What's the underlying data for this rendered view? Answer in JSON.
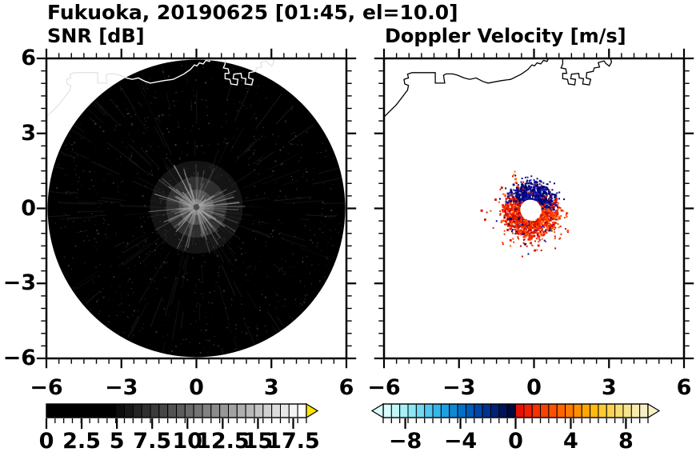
{
  "title": "Fukuoka, 20190625 [01:45, el=10.0]",
  "panels": {
    "snr": {
      "label": "SNR [dB]"
    },
    "vel": {
      "label": "Doppler Velocity [m/s]"
    }
  },
  "axis": {
    "x_labels": [
      "−6",
      "−3",
      "0",
      "3",
      "6"
    ],
    "y_labels": [
      "6",
      "3",
      "0",
      "−3",
      "−6"
    ],
    "x_values": [
      -6,
      -3,
      0,
      3,
      6
    ],
    "y_values": [
      6,
      3,
      0,
      -3,
      -6
    ],
    "range": [
      -6,
      6
    ],
    "minor_step": 0.5
  },
  "chart_data": [
    {
      "type": "heatmap",
      "panel": "snr",
      "title": "SNR [dB]",
      "x_range": [
        -6,
        6
      ],
      "y_range": [
        -6,
        6
      ],
      "x_ticks": [
        -6,
        -3,
        0,
        3,
        6
      ],
      "y_ticks": [
        6,
        3,
        0,
        -3,
        -6
      ],
      "minor_tick_step": 0.5,
      "colorbar": {
        "labels": [
          "0",
          "2.5",
          "5",
          "7.5",
          "10",
          "12.5",
          "15",
          "17.5"
        ],
        "label_values": [
          0,
          2.5,
          5,
          7.5,
          10,
          12.5,
          15,
          17.5
        ],
        "vmin": 0,
        "vmax": 18.5,
        "overflow_arrow_color": "#ffe400",
        "segment_colors": [
          "#000000",
          "#000000",
          "#000000",
          "#000000",
          "#000000",
          "#000000",
          "#000000",
          "#000000",
          "#0d0d0d",
          "#181818",
          "#242424",
          "#2f2f2f",
          "#3b3b3b",
          "#464646",
          "#525252",
          "#5d5d5d",
          "#696969",
          "#747474",
          "#808080",
          "#8b8b8b",
          "#979797",
          "#a2a2a2",
          "#aeaeae",
          "#b9b9b9",
          "#c5c5c5",
          "#d0d0d0",
          "#dcdcdc",
          "#e7e7e7",
          "#f3f3f3",
          "#ffffff"
        ]
      },
      "scan": {
        "disk_radius": 5.95,
        "disk_color": "#000000",
        "starburst_center": [
          0.0,
          0.05
        ],
        "starburst_radius": 1.9,
        "description": "dark PPI scan disk with speckle noise and bright radial ground-clutter starburst at radar site; coastline overlaid in white"
      }
    },
    {
      "type": "heatmap",
      "panel": "vel",
      "title": "Doppler Velocity [m/s]",
      "x_range": [
        -6,
        6
      ],
      "y_range": [
        -6,
        6
      ],
      "x_ticks": [
        -6,
        -3,
        0,
        3,
        6
      ],
      "y_ticks": [
        6,
        3,
        0,
        -3,
        -6
      ],
      "minor_tick_step": 0.5,
      "colorbar": {
        "labels": [
          "−8",
          "−4",
          "0",
          "4",
          "8"
        ],
        "label_values": [
          -8,
          -4,
          0,
          4,
          8
        ],
        "vmin": -9.6,
        "vmax": 9.6,
        "segment_colors": [
          "#dafcfc",
          "#c2f7fa",
          "#a8f0f8",
          "#8ce6f6",
          "#6fd9f3",
          "#52c8ef",
          "#36b5ea",
          "#1da0e2",
          "#0b88d6",
          "#0070c8",
          "#005ab8",
          "#0046a6",
          "#003390",
          "#002276",
          "#001458",
          "#040838",
          "#e81000",
          "#f12000",
          "#f63000",
          "#fa4000",
          "#fe5000",
          "#ff6400",
          "#ff7a00",
          "#ff9000",
          "#ffa600",
          "#ffba10",
          "#ffc930",
          "#fbd350",
          "#f8dd70",
          "#f7e58e",
          "#f6ebac",
          "#f6f0c4"
        ]
      },
      "velocity_ring": {
        "center": [
          -0.15,
          -0.05
        ],
        "hole_radius": 0.4,
        "inner_radius": 0.44,
        "dense_radius": 1.08,
        "fuzz_radius": 1.8,
        "away_sector_deg": [
          15,
          150
        ],
        "blue_shades": [
          "#00006e",
          "#000080",
          "#0d0d9a",
          "#1a1aae",
          "#000a5a"
        ],
        "red_shades": [
          "#e01000",
          "#ee2000",
          "#f63000",
          "#ff4500",
          "#d00d00",
          "#ff5a00"
        ],
        "outlier_points": [
          {
            "x": -0.7,
            "y": 0.95,
            "c": "#ff6a00",
            "s": 3
          },
          {
            "x": -0.74,
            "y": 1.08,
            "c": "#ff5800",
            "s": 2
          },
          {
            "x": -0.78,
            "y": 1.22,
            "c": "#ff6a00",
            "s": 3
          },
          {
            "x": -0.84,
            "y": 1.38,
            "c": "#ff7a00",
            "s": 2
          },
          {
            "x": -0.8,
            "y": 1.5,
            "c": "#ff6a00",
            "s": 2
          },
          {
            "x": -0.88,
            "y": 1.32,
            "c": "#e81000",
            "s": 2
          },
          {
            "x": -2.14,
            "y": -0.04,
            "c": "#e81000",
            "s": 3
          },
          {
            "x": -1.76,
            "y": -0.07,
            "c": "#ff4500",
            "s": 2
          },
          {
            "x": -1.22,
            "y": -0.33,
            "c": "#000080",
            "s": 2
          },
          {
            "x": 0.83,
            "y": 0.34,
            "c": "#e81000",
            "s": 3
          },
          {
            "x": 1.02,
            "y": 0.05,
            "c": "#e81000",
            "s": 2
          },
          {
            "x": -0.1,
            "y": -1.45,
            "c": "#e81000",
            "s": 2
          },
          {
            "x": 0.15,
            "y": -1.3,
            "c": "#ff4500",
            "s": 2
          },
          {
            "x": -0.45,
            "y": -1.35,
            "c": "#f52c00",
            "s": 2
          },
          {
            "x": 0.35,
            "y": 1.05,
            "c": "#000a6e",
            "s": 2
          },
          {
            "x": 0.1,
            "y": 1.22,
            "c": "#000a6e",
            "s": 2
          }
        ],
        "description": "Doppler velocity couplet ring around radar: negative (navy, away) on upper sector, positive (red-orange, toward) on lower/flanking sectors, white data-gap hole at center; coastline overlaid in black"
      }
    }
  ],
  "map": {
    "coastline_main": [
      [
        -6,
        3.66
      ],
      [
        -5.5,
        4.15
      ],
      [
        -5.06,
        4.73
      ],
      [
        -5.02,
        4.92
      ],
      [
        -5.17,
        4.98
      ],
      [
        -5.2,
        5.16
      ],
      [
        -5.02,
        5.22
      ],
      [
        -5.06,
        5.37
      ],
      [
        -4.88,
        5.43
      ],
      [
        -3.95,
        5.43
      ],
      [
        -3.95,
        5.01
      ],
      [
        -3.57,
        5.01
      ],
      [
        -3.62,
        5.32
      ],
      [
        -3.52,
        5.38
      ],
      [
        -3.25,
        5.38
      ],
      [
        -3.07,
        5.33
      ],
      [
        -2.8,
        5.22
      ],
      [
        -2.57,
        5.16
      ],
      [
        -2.32,
        5.22
      ],
      [
        -2.05,
        5.08
      ],
      [
        -1.84,
        5.01
      ],
      [
        -1.63,
        5.05
      ],
      [
        -1.31,
        5.11
      ],
      [
        -0.93,
        5.16
      ],
      [
        -0.51,
        5.37
      ],
      [
        -0.24,
        5.56
      ],
      [
        -0.08,
        5.74
      ],
      [
        0.02,
        5.7
      ],
      [
        0.12,
        5.82
      ],
      [
        0.27,
        5.78
      ],
      [
        0.38,
        5.92
      ],
      [
        0.52,
        5.88
      ],
      [
        0.6,
        6.05
      ]
    ],
    "coastline_harbor": [
      [
        1.15,
        6.05
      ],
      [
        1.15,
        5.78
      ],
      [
        1.08,
        5.62
      ],
      [
        1.27,
        5.58
      ],
      [
        1.31,
        5.4
      ],
      [
        1.15,
        5.4
      ],
      [
        1.15,
        5.19
      ],
      [
        1.34,
        5.16
      ],
      [
        1.38,
        4.98
      ],
      [
        1.63,
        4.94
      ],
      [
        1.66,
        5.16
      ],
      [
        1.47,
        5.19
      ],
      [
        1.5,
        5.37
      ],
      [
        1.79,
        5.4
      ],
      [
        1.81,
        5.22
      ],
      [
        1.98,
        5.19
      ],
      [
        1.95,
        4.98
      ],
      [
        2.21,
        4.94
      ],
      [
        2.27,
        5.16
      ],
      [
        2.09,
        5.22
      ],
      [
        2.11,
        5.43
      ],
      [
        2.37,
        5.48
      ],
      [
        2.41,
        5.62
      ],
      [
        2.62,
        5.65
      ],
      [
        2.57,
        5.83
      ],
      [
        2.8,
        5.9
      ],
      [
        2.87,
        5.8
      ],
      [
        3.01,
        5.69
      ],
      [
        3.1,
        5.85
      ],
      [
        3.05,
        6.05
      ]
    ]
  },
  "colors": {
    "frame": "#000000",
    "background": "#ffffff",
    "coast_on_dark": "#ffffff",
    "coast_on_light": "#000000"
  }
}
